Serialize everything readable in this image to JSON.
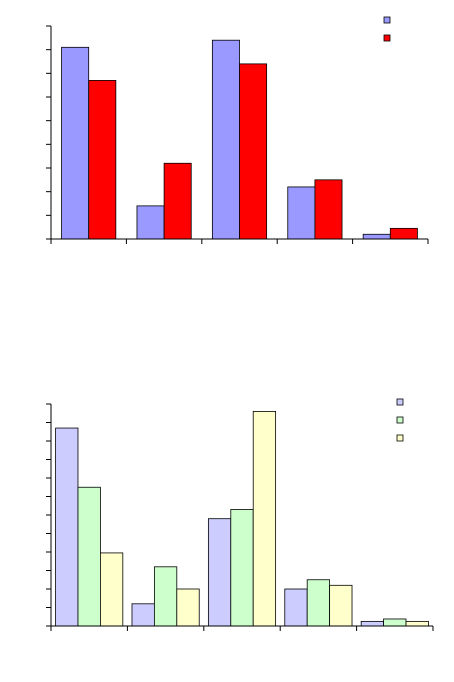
{
  "chart_data": [
    {
      "type": "bar",
      "categories": [
        "",
        "",
        "",
        "",
        ""
      ],
      "series": [
        {
          "color": "#9999ff",
          "values": [
            8.1,
            1.4,
            8.4,
            2.2,
            0.2
          ]
        },
        {
          "color": "#ff0000",
          "values": [
            6.7,
            3.2,
            7.4,
            2.5,
            0.45
          ]
        }
      ],
      "ylim": [
        0,
        9
      ],
      "y_major_ticks": 9,
      "grid": false,
      "legend": "top-right"
    },
    {
      "type": "bar",
      "categories": [
        "",
        "",
        "",
        "",
        ""
      ],
      "series": [
        {
          "color": "#ccccff",
          "values": [
            10.7,
            1.2,
            5.8,
            2.0,
            0.25
          ]
        },
        {
          "color": "#ccffcc",
          "values": [
            7.5,
            3.2,
            6.3,
            2.5,
            0.38
          ]
        },
        {
          "color": "#ffffcc",
          "values": [
            3.95,
            2.0,
            11.6,
            2.2,
            0.25
          ]
        }
      ],
      "ylim": [
        0,
        12
      ],
      "y_major_ticks": 12,
      "grid": false,
      "legend": "top-right"
    }
  ]
}
